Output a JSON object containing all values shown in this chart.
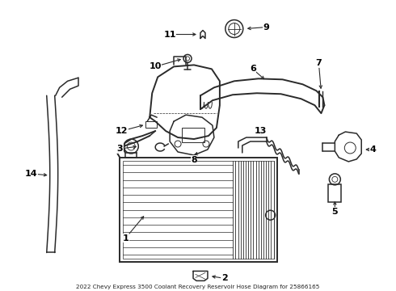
{
  "title": "2022 Chevy Express 3500 Coolant Recovery Reservoir Hose Diagram for 25866165",
  "bg_color": "#ffffff",
  "line_color": "#2a2a2a",
  "label_color": "#000000",
  "figsize": [
    4.9,
    3.6
  ],
  "dpi": 100
}
